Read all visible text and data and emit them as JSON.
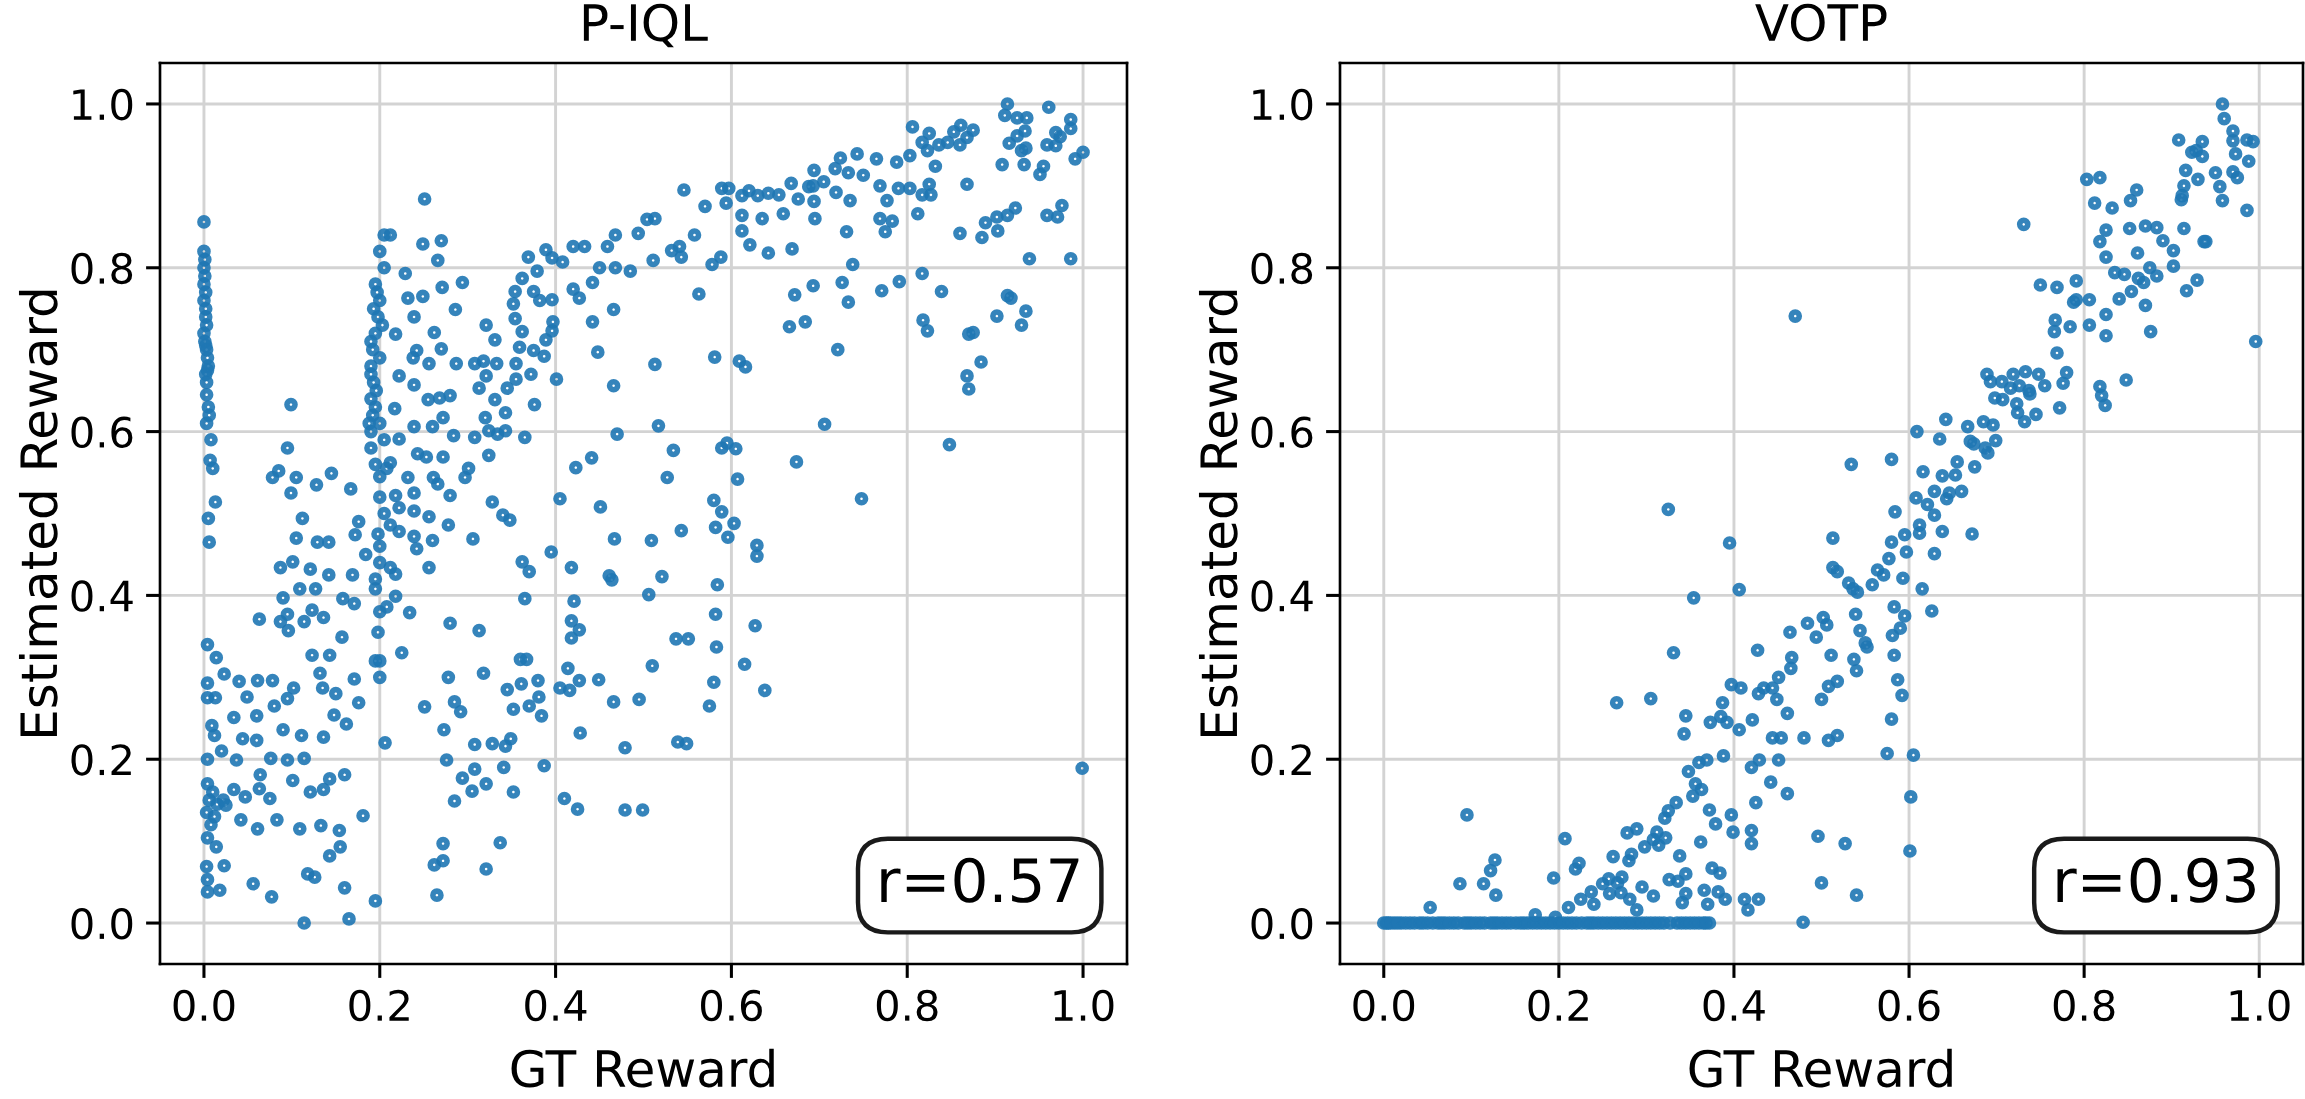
{
  "chart_data": [
    {
      "type": "scatter",
      "title": "P-IQL",
      "xlabel": "GT Reward",
      "ylabel": "Estimated Reward",
      "color": "#1f77b4",
      "marker": "circle",
      "grid": true,
      "xlim": [
        -0.05,
        1.05
      ],
      "ylim": [
        -0.05,
        1.05
      ],
      "xticks": [
        {
          "value": 0,
          "label": "0.0"
        },
        {
          "value": 0.2,
          "label": "0.2"
        },
        {
          "value": 0.4,
          "label": "0.4"
        },
        {
          "value": 0.6,
          "label": "0.6"
        },
        {
          "value": 0.8,
          "label": "0.8"
        },
        {
          "value": 1,
          "label": "1.0"
        }
      ],
      "yticks": [
        {
          "value": 0,
          "label": "0.0"
        },
        {
          "value": 0.2,
          "label": "0.2"
        },
        {
          "value": 0.4,
          "label": "0.4"
        },
        {
          "value": 0.6,
          "label": "0.6"
        },
        {
          "value": 0.8,
          "label": "0.8"
        },
        {
          "value": 1,
          "label": "1.0"
        }
      ],
      "annotations": [
        "r=0.57"
      ],
      "x": [
        0,
        0,
        0,
        0,
        0,
        0.002,
        0,
        0.003,
        0.005,
        0.003,
        0.005,
        0.003,
        0.008,
        0.007,
        0.01,
        0.013,
        0.005,
        0.006,
        0.001,
        0.002,
        0.001,
        0.004,
        0.002,
        0.001,
        0.002,
        0.003,
        0.002,
        0.004,
        0.003,
        0.006,
        0.004,
        0.014,
        0.023,
        0.004,
        0.004,
        0.013,
        0.009,
        0.012,
        0.02,
        0.004,
        0.004,
        0.01,
        0.006,
        0.015,
        0.003,
        0.012,
        0.022,
        0.008,
        0.004,
        0.014,
        0.023,
        0.003,
        0.004,
        0.004,
        0.018,
        0.056,
        0.077,
        0.114,
        0.118,
        0.126,
        0.16,
        0.165,
        0.195,
        0.143,
        0.155,
        0.154,
        0.181,
        0.133,
        0.109,
        0.061,
        0.083,
        0.042,
        0.034,
        0.063,
        0.075,
        0.047,
        0.025,
        0.101,
        0.121,
        0.136,
        0.143,
        0.16,
        0.114,
        0.095,
        0.076,
        0.064,
        0.037,
        0.044,
        0.06,
        0.034,
        0.06,
        0.08,
        0.04,
        0.061,
        0.078,
        0.049,
        0.102,
        0.095,
        0.09,
        0.111,
        0.136,
        0.135,
        0.123,
        0.143,
        0.132,
        0.15,
        0.148,
        0.162,
        0.176,
        0.171,
        0.195,
        0.063,
        0.087,
        0.096,
        0.095,
        0.114,
        0.123,
        0.136,
        0.09,
        0.109,
        0.127,
        0.142,
        0.158,
        0.157,
        0.171,
        0.169,
        0.184,
        0.195,
        0.087,
        0.101,
        0.121,
        0.105,
        0.112,
        0.129,
        0.142,
        0.172,
        0.176,
        0.099,
        0.078,
        0.095,
        0.085,
        0.105,
        0.128,
        0.145,
        0.167,
        0.099,
        0.205,
        0.212,
        0.2,
        0.205,
        0.195,
        0.2,
        0.198,
        0.195,
        0.192,
        0.19,
        0.193,
        0.19,
        0.192,
        0.19,
        0.19,
        0.195,
        0.2,
        0.2,
        0.205,
        0.198,
        0.2,
        0.2,
        0.195,
        0.2,
        0.198,
        0.2,
        0.2,
        0.197,
        0.203,
        0.2,
        0.196,
        0.2,
        0.205,
        0.19,
        0.193,
        0.195,
        0.19,
        0.188,
        0.251,
        0.249,
        0.27,
        0.266,
        0.229,
        0.271,
        0.294,
        0.249,
        0.232,
        0.262,
        0.239,
        0.286,
        0.218,
        0.242,
        0.27,
        0.287,
        0.256,
        0.238,
        0.222,
        0.239,
        0.255,
        0.268,
        0.28,
        0.308,
        0.318,
        0.313,
        0.217,
        0.239,
        0.26,
        0.272,
        0.284,
        0.308,
        0.222,
        0.243,
        0.253,
        0.272,
        0.212,
        0.232,
        0.218,
        0.208,
        0.239,
        0.261,
        0.266,
        0.28,
        0.297,
        0.301,
        0.222,
        0.239,
        0.212,
        0.222,
        0.239,
        0.242,
        0.26,
        0.256,
        0.278,
        0.306,
        0.212,
        0.218,
        0.256,
        0.218,
        0.234,
        0.208,
        0.225,
        0.206,
        0.251,
        0.28,
        0.278,
        0.285,
        0.292,
        0.273,
        0.276,
        0.285,
        0.294,
        0.305,
        0.308,
        0.272,
        0.262,
        0.272,
        0.265,
        0.313,
        0.318,
        0.308,
        0.321,
        0.321,
        0.321,
        0.32,
        0.328,
        0.331,
        0.333,
        0.321,
        0.331,
        0.345,
        0.343,
        0.324,
        0.334,
        0.343,
        0.324,
        0.365,
        0.355,
        0.355,
        0.372,
        0.359,
        0.362,
        0.354,
        0.352,
        0.354,
        0.362,
        0.369,
        0.375,
        0.382,
        0.375,
        0.379,
        0.389,
        0.396,
        0.396,
        0.389,
        0.396,
        0.397,
        0.387,
        0.401,
        0.376,
        0.408,
        0.42,
        0.433,
        0.42,
        0.427,
        0.442,
        0.442,
        0.45,
        0.459,
        0.468,
        0.468,
        0.466,
        0.448,
        0.466,
        0.485,
        0.494,
        0.504,
        0.513,
        0.511,
        0.513,
        0.532,
        0.541,
        0.543,
        0.546,
        0.558,
        0.563,
        0.57,
        0.578,
        0.588,
        0.581,
        0.589,
        0.597,
        0.594,
        0.609,
        0.616,
        0.612,
        0.612,
        0.612,
        0.621,
        0.62,
        0.63,
        0.642,
        0.635,
        0.642,
        0.654,
        0.659,
        0.668,
        0.676,
        0.669,
        0.672,
        0.666,
        0.684,
        0.674,
        0.688,
        0.517,
        0.47,
        0.534,
        0.441,
        0.423,
        0.527,
        0.405,
        0.451,
        0.589,
        0.595,
        0.605,
        0.607,
        0.58,
        0.589,
        0.582,
        0.603,
        0.596,
        0.629,
        0.629,
        0.543,
        0.509,
        0.467,
        0.34,
        0.348,
        0.395,
        0.362,
        0.37,
        0.418,
        0.461,
        0.464,
        0.521,
        0.506,
        0.584,
        0.365,
        0.421,
        0.418,
        0.427,
        0.418,
        0.582,
        0.627,
        0.537,
        0.551,
        0.583,
        0.36,
        0.367,
        0.414,
        0.51,
        0.615,
        0.345,
        0.361,
        0.38,
        0.427,
        0.449,
        0.405,
        0.416,
        0.58,
        0.638,
        0.352,
        0.37,
        0.381,
        0.384,
        0.466,
        0.495,
        0.575,
        0.328,
        0.343,
        0.349,
        0.428,
        0.479,
        0.539,
        0.549,
        0.341,
        0.352,
        0.387,
        0.41,
        0.425,
        0.479,
        0.499,
        0.337,
        0.694,
        0.693,
        0.705,
        0.694,
        0.695,
        0.718,
        0.724,
        0.719,
        0.733,
        0.735,
        0.743,
        0.75,
        0.765,
        0.769,
        0.777,
        0.788,
        0.79,
        0.769,
        0.775,
        0.783,
        0.731,
        0.803,
        0.806,
        0.817,
        0.825,
        0.823,
        0.803,
        0.812,
        0.817,
        0.825,
        0.827,
        0.832,
        0.836,
        0.846,
        0.853,
        0.861,
        0.868,
        0.875,
        0.86,
        0.868,
        0.86,
        0.885,
        0.889,
        0.902,
        0.914,
        0.923,
        0.903,
        0.908,
        0.914,
        0.911,
        0.925,
        0.936,
        0.916,
        0.925,
        0.934,
        0.93,
        0.935,
        0.933,
        0.951,
        0.955,
        0.959,
        0.961,
        0.969,
        0.974,
        0.969,
        0.959,
        0.971,
        0.976,
        0.986,
        0.986,
        0.991,
        1.0,
        0.939,
        0.986,
        0.693,
        0.726,
        0.733,
        0.738,
        0.771,
        0.791,
        0.721,
        0.817,
        0.839,
        0.818,
        0.823,
        0.87,
        0.875,
        0.868,
        0.87,
        0.884,
        0.902,
        0.914,
        0.918,
        0.935,
        0.93,
        0.706,
        0.848,
        0.748,
        0.999
      ],
      "values": [
        0.856,
        0.82,
        0.8,
        0.78,
        0.76,
        0.74,
        0.72,
        0.7,
        0.68,
        0.66,
        0.63,
        0.61,
        0.59,
        0.565,
        0.555,
        0.514,
        0.494,
        0.465,
        0.79,
        0.75,
        0.71,
        0.69,
        0.67,
        0.81,
        0.77,
        0.73,
        0.705,
        0.675,
        0.645,
        0.62,
        0.34,
        0.324,
        0.304,
        0.293,
        0.275,
        0.275,
        0.241,
        0.229,
        0.21,
        0.2,
        0.17,
        0.16,
        0.15,
        0.145,
        0.135,
        0.13,
        0.15,
        0.12,
        0.104,
        0.093,
        0.07,
        0.069,
        0.053,
        0.038,
        0.04,
        0.048,
        0.032,
        0.0,
        0.06,
        0.056,
        0.043,
        0.005,
        0.027,
        0.082,
        0.093,
        0.113,
        0.131,
        0.119,
        0.115,
        0.115,
        0.126,
        0.126,
        0.163,
        0.164,
        0.152,
        0.154,
        0.144,
        0.174,
        0.16,
        0.163,
        0.176,
        0.181,
        0.201,
        0.199,
        0.201,
        0.181,
        0.199,
        0.225,
        0.223,
        0.251,
        0.253,
        0.265,
        0.295,
        0.296,
        0.296,
        0.276,
        0.287,
        0.274,
        0.236,
        0.229,
        0.227,
        0.287,
        0.327,
        0.327,
        0.305,
        0.28,
        0.254,
        0.243,
        0.269,
        0.298,
        0.32,
        0.371,
        0.368,
        0.357,
        0.377,
        0.368,
        0.382,
        0.373,
        0.397,
        0.408,
        0.408,
        0.425,
        0.396,
        0.349,
        0.39,
        0.425,
        0.45,
        0.408,
        0.434,
        0.441,
        0.432,
        0.47,
        0.494,
        0.465,
        0.465,
        0.474,
        0.49,
        0.525,
        0.544,
        0.58,
        0.552,
        0.544,
        0.535,
        0.549,
        0.53,
        0.633,
        0.84,
        0.84,
        0.82,
        0.8,
        0.78,
        0.76,
        0.74,
        0.72,
        0.7,
        0.68,
        0.66,
        0.64,
        0.62,
        0.6,
        0.58,
        0.56,
        0.545,
        0.52,
        0.5,
        0.475,
        0.46,
        0.44,
        0.42,
        0.38,
        0.355,
        0.32,
        0.3,
        0.77,
        0.73,
        0.69,
        0.65,
        0.61,
        0.59,
        0.71,
        0.75,
        0.63,
        0.67,
        0.61,
        0.884,
        0.829,
        0.833,
        0.809,
        0.793,
        0.776,
        0.782,
        0.765,
        0.763,
        0.721,
        0.74,
        0.749,
        0.719,
        0.699,
        0.701,
        0.683,
        0.683,
        0.69,
        0.668,
        0.657,
        0.639,
        0.641,
        0.644,
        0.683,
        0.686,
        0.653,
        0.628,
        0.606,
        0.606,
        0.617,
        0.595,
        0.593,
        0.591,
        0.573,
        0.569,
        0.569,
        0.562,
        0.544,
        0.522,
        0.555,
        0.525,
        0.544,
        0.536,
        0.522,
        0.544,
        0.555,
        0.507,
        0.503,
        0.486,
        0.478,
        0.472,
        0.457,
        0.467,
        0.496,
        0.486,
        0.469,
        0.434,
        0.426,
        0.434,
        0.399,
        0.379,
        0.386,
        0.33,
        0.22,
        0.264,
        0.366,
        0.3,
        0.27,
        0.258,
        0.236,
        0.199,
        0.149,
        0.177,
        0.161,
        0.188,
        0.097,
        0.071,
        0.076,
        0.034,
        0.357,
        0.305,
        0.218,
        0.066,
        0.17,
        0.73,
        0.617,
        0.514,
        0.712,
        0.683,
        0.668,
        0.639,
        0.653,
        0.623,
        0.601,
        0.597,
        0.601,
        0.571,
        0.593,
        0.683,
        0.664,
        0.67,
        0.703,
        0.722,
        0.738,
        0.756,
        0.771,
        0.787,
        0.813,
        0.771,
        0.76,
        0.699,
        0.796,
        0.822,
        0.812,
        0.761,
        0.712,
        0.723,
        0.734,
        0.692,
        0.664,
        0.633,
        0.807,
        0.826,
        0.826,
        0.774,
        0.763,
        0.782,
        0.734,
        0.8,
        0.826,
        0.84,
        0.8,
        0.749,
        0.697,
        0.656,
        0.796,
        0.842,
        0.859,
        0.86,
        0.809,
        0.682,
        0.821,
        0.826,
        0.813,
        0.895,
        0.84,
        0.768,
        0.875,
        0.804,
        0.813,
        0.691,
        0.897,
        0.897,
        0.879,
        0.686,
        0.679,
        0.888,
        0.864,
        0.845,
        0.828,
        0.894,
        0.888,
        0.891,
        0.86,
        0.818,
        0.889,
        0.866,
        0.903,
        0.884,
        0.823,
        0.767,
        0.728,
        0.734,
        0.563,
        0.899,
        0.607,
        0.597,
        0.577,
        0.568,
        0.556,
        0.544,
        0.518,
        0.508,
        0.58,
        0.586,
        0.579,
        0.542,
        0.516,
        0.502,
        0.483,
        0.488,
        0.471,
        0.461,
        0.448,
        0.479,
        0.467,
        0.469,
        0.498,
        0.492,
        0.453,
        0.441,
        0.429,
        0.434,
        0.424,
        0.419,
        0.423,
        0.401,
        0.413,
        0.396,
        0.393,
        0.369,
        0.358,
        0.348,
        0.377,
        0.363,
        0.347,
        0.347,
        0.337,
        0.322,
        0.322,
        0.311,
        0.314,
        0.316,
        0.285,
        0.292,
        0.296,
        0.296,
        0.297,
        0.287,
        0.284,
        0.294,
        0.284,
        0.261,
        0.265,
        0.276,
        0.253,
        0.27,
        0.273,
        0.265,
        0.219,
        0.216,
        0.225,
        0.232,
        0.214,
        0.221,
        0.219,
        0.19,
        0.16,
        0.192,
        0.152,
        0.139,
        0.138,
        0.138,
        0.098,
        0.919,
        0.9,
        0.905,
        0.881,
        0.86,
        0.921,
        0.934,
        0.892,
        0.916,
        0.882,
        0.939,
        0.913,
        0.933,
        0.9,
        0.882,
        0.929,
        0.897,
        0.86,
        0.844,
        0.857,
        0.844,
        0.937,
        0.972,
        0.953,
        0.964,
        0.943,
        0.897,
        0.866,
        0.889,
        0.902,
        0.889,
        0.924,
        0.95,
        0.953,
        0.966,
        0.974,
        0.959,
        0.968,
        0.95,
        0.902,
        0.842,
        0.837,
        0.855,
        0.862,
        0.864,
        0.873,
        0.845,
        0.926,
        1.0,
        0.986,
        0.983,
        0.983,
        0.952,
        0.961,
        0.967,
        0.943,
        0.946,
        0.926,
        0.914,
        0.924,
        0.95,
        0.996,
        0.965,
        0.96,
        0.949,
        0.864,
        0.862,
        0.876,
        0.981,
        0.97,
        0.933,
        0.941,
        0.811,
        0.811,
        0.778,
        0.782,
        0.758,
        0.804,
        0.772,
        0.783,
        0.7,
        0.793,
        0.771,
        0.736,
        0.723,
        0.719,
        0.721,
        0.668,
        0.652,
        0.685,
        0.741,
        0.766,
        0.763,
        0.747,
        0.73,
        0.609,
        0.584,
        0.518,
        0.189
      ]
    },
    {
      "type": "scatter",
      "title": "VOTP",
      "xlabel": "GT Reward",
      "ylabel": "Estimated Reward",
      "color": "#1f77b4",
      "marker": "circle",
      "grid": true,
      "xlim": [
        -0.05,
        1.05
      ],
      "ylim": [
        -0.05,
        1.05
      ],
      "xticks": [
        {
          "value": 0,
          "label": "0.0"
        },
        {
          "value": 0.2,
          "label": "0.2"
        },
        {
          "value": 0.4,
          "label": "0.4"
        },
        {
          "value": 0.6,
          "label": "0.6"
        },
        {
          "value": 0.8,
          "label": "0.8"
        },
        {
          "value": 1,
          "label": "1.0"
        }
      ],
      "yticks": [
        {
          "value": 0,
          "label": "0.0"
        },
        {
          "value": 0.2,
          "label": "0.2"
        },
        {
          "value": 0.4,
          "label": "0.4"
        },
        {
          "value": 0.6,
          "label": "0.6"
        },
        {
          "value": 0.8,
          "label": "0.8"
        },
        {
          "value": 1,
          "label": "1.0"
        }
      ],
      "annotations": [
        "r=0.93"
      ],
      "x": [
        0.0,
        0.005,
        0.012,
        0.02,
        0.03,
        0.041,
        0.05,
        0.062,
        0.07,
        0.08,
        0.092,
        0.1,
        0.11,
        0.122,
        0.13,
        0.14,
        0.151,
        0.16,
        0.17,
        0.18,
        0.19,
        0.2,
        0.21,
        0.22,
        0.232,
        0.24,
        0.25,
        0.26,
        0.27,
        0.28,
        0.29,
        0.3,
        0.31,
        0.32,
        0.335,
        0.345,
        0.355,
        0.365,
        0.372,
        0.196,
        0.003,
        0.008,
        0.016,
        0.025,
        0.035,
        0.045,
        0.056,
        0.066,
        0.075,
        0.085,
        0.096,
        0.105,
        0.115,
        0.126,
        0.135,
        0.145,
        0.156,
        0.165,
        0.175,
        0.185,
        0.195,
        0.205,
        0.215,
        0.226,
        0.236,
        0.245,
        0.255,
        0.265,
        0.275,
        0.285,
        0.295,
        0.305,
        0.315,
        0.327,
        0.34,
        0.35,
        0.36,
        0.368,
        0.053,
        0.095,
        0.087,
        0.114,
        0.122,
        0.127,
        0.128,
        0.173,
        0.194,
        0.207,
        0.211,
        0.219,
        0.223,
        0.225,
        0.237,
        0.24,
        0.25,
        0.257,
        0.258,
        0.262,
        0.266,
        0.267,
        0.272,
        0.271,
        0.278,
        0.28,
        0.283,
        0.281,
        0.289,
        0.289,
        0.295,
        0.298,
        0.305,
        0.308,
        0.308,
        0.312,
        0.314,
        0.321,
        0.322,
        0.325,
        0.325,
        0.326,
        0.331,
        0.334,
        0.336,
        0.338,
        0.341,
        0.343,
        0.345,
        0.345,
        0.345,
        0.348,
        0.353,
        0.354,
        0.356,
        0.36,
        0.362,
        0.363,
        0.366,
        0.369,
        0.37,
        0.372,
        0.373,
        0.375,
        0.379,
        0.382,
        0.384,
        0.385,
        0.387,
        0.388,
        0.39,
        0.392,
        0.395,
        0.397,
        0.397,
        0.399,
        0.406,
        0.408,
        0.406,
        0.412,
        0.416,
        0.42,
        0.421,
        0.42,
        0.42,
        0.425,
        0.427,
        0.428,
        0.428,
        0.429,
        0.434,
        0.442,
        0.444,
        0.451,
        0.449,
        0.451,
        0.444,
        0.454,
        0.461,
        0.461,
        0.464,
        0.466,
        0.47,
        0.479,
        0.5,
        0.496,
        0.527,
        0.54,
        0.48,
        0.508,
        0.518,
        0.5,
        0.518,
        0.508,
        0.54,
        0.537,
        0.511,
        0.465,
        0.484,
        0.494,
        0.502,
        0.506,
        0.539,
        0.544,
        0.55,
        0.552,
        0.513,
        0.518,
        0.513,
        0.531,
        0.536,
        0.541,
        0.534,
        0.558,
        0.564,
        0.571,
        0.577,
        0.583,
        0.581,
        0.583,
        0.587,
        0.592,
        0.58,
        0.575,
        0.605,
        0.602,
        0.601,
        0.59,
        0.595,
        0.58,
        0.584,
        0.58,
        0.593,
        0.595,
        0.597,
        0.609,
        0.612,
        0.612,
        0.615,
        0.608,
        0.616,
        0.621,
        0.626,
        0.629,
        0.629,
        0.629,
        0.635,
        0.638,
        0.638,
        0.642,
        0.643,
        0.646,
        0.653,
        0.655,
        0.66,
        0.667,
        0.67,
        0.672,
        0.675,
        0.674,
        0.685,
        0.687,
        0.689,
        0.69,
        0.693,
        0.696,
        0.699,
        0.698,
        0.706,
        0.707,
        0.716,
        0.719,
        0.723,
        0.724,
        0.726,
        0.732,
        0.733,
        0.737,
        0.738,
        0.731,
        0.745,
        0.748,
        0.755,
        0.75,
        0.769,
        0.767,
        0.766,
        0.769,
        0.772,
        0.776,
        0.78,
        0.784,
        0.788,
        0.791,
        0.791,
        0.806,
        0.806,
        0.803,
        0.818,
        0.812,
        0.818,
        0.82,
        0.824,
        0.818,
        0.825,
        0.825,
        0.825,
        0.825,
        0.832,
        0.835,
        0.84,
        0.848,
        0.846,
        0.853,
        0.86,
        0.852,
        0.854,
        0.861,
        0.862,
        0.868,
        0.87,
        0.87,
        0.876,
        0.875,
        0.883,
        0.883,
        0.89,
        0.902,
        0.902,
        0.908,
        0.911,
        0.912,
        0.914,
        0.914,
        0.917,
        0.916,
        0.923,
        0.928,
        0.93,
        0.929,
        0.935,
        0.935,
        0.937,
        0.939,
        0.95,
        0.955,
        0.958,
        0.96,
        0.958,
        0.97,
        0.97,
        0.973,
        0.97,
        0.975,
        0.986,
        0.988,
        0.986,
        0.993,
        0.996
      ],
      "values": [
        0,
        0,
        0,
        0,
        0,
        0,
        0,
        0,
        0,
        0,
        0,
        0,
        0,
        0,
        0,
        0,
        0,
        0,
        0,
        0,
        0,
        0,
        0,
        0,
        0,
        0,
        0,
        0,
        0,
        0,
        0,
        0,
        0,
        0,
        0,
        0,
        0,
        0,
        0,
        0.007,
        0,
        0,
        0,
        0,
        0,
        0,
        0,
        0,
        0,
        0,
        0,
        0,
        0,
        0,
        0,
        0,
        0,
        0,
        0,
        0,
        0,
        0,
        0,
        0,
        0,
        0,
        0,
        0,
        0,
        0,
        0,
        0,
        0,
        0,
        0,
        0,
        0,
        0,
        0.019,
        0.132,
        0.048,
        0.048,
        0.064,
        0.077,
        0.034,
        0.01,
        0.055,
        0.103,
        0.019,
        0.066,
        0.073,
        0.029,
        0.038,
        0.023,
        0.048,
        0.054,
        0.036,
        0.081,
        0.269,
        0.049,
        0.056,
        0.037,
        0.11,
        0.076,
        0.084,
        0.029,
        0.115,
        0.016,
        0.044,
        0.093,
        0.274,
        0.033,
        0.102,
        0.111,
        0.095,
        0.128,
        0.104,
        0.505,
        0.137,
        0.053,
        0.33,
        0.147,
        0.051,
        0.082,
        0.025,
        0.231,
        0.253,
        0.06,
        0.036,
        0.185,
        0.155,
        0.397,
        0.17,
        0.196,
        0.099,
        0.163,
        0.04,
        0.199,
        0.023,
        0.138,
        0.245,
        0.067,
        0.121,
        0.038,
        0.061,
        0.252,
        0.269,
        0.204,
        0.029,
        0.245,
        0.464,
        0.291,
        0.132,
        0.111,
        0.407,
        0.287,
        0.236,
        0.029,
        0.016,
        0.19,
        0.248,
        0.113,
        0.097,
        0.147,
        0.333,
        0.28,
        0.029,
        0.199,
        0.287,
        0.172,
        0.287,
        0.3,
        0.273,
        0.199,
        0.226,
        0.226,
        0.158,
        0.256,
        0.355,
        0.324,
        0.741,
        0.001,
        0.049,
        0.106,
        0.097,
        0.034,
        0.226,
        0.223,
        0.229,
        0.273,
        0.295,
        0.289,
        0.308,
        0.322,
        0.327,
        0.311,
        0.366,
        0.349,
        0.373,
        0.364,
        0.377,
        0.357,
        0.342,
        0.337,
        0.434,
        0.429,
        0.47,
        0.415,
        0.408,
        0.404,
        0.56,
        0.413,
        0.431,
        0.425,
        0.445,
        0.386,
        0.351,
        0.327,
        0.297,
        0.278,
        0.249,
        0.207,
        0.205,
        0.154,
        0.088,
        0.36,
        0.375,
        0.465,
        0.502,
        0.566,
        0.421,
        0.474,
        0.453,
        0.6,
        0.486,
        0.476,
        0.408,
        0.519,
        0.551,
        0.511,
        0.381,
        0.498,
        0.527,
        0.451,
        0.591,
        0.546,
        0.478,
        0.615,
        0.518,
        0.525,
        0.547,
        0.563,
        0.527,
        0.606,
        0.588,
        0.475,
        0.557,
        0.585,
        0.612,
        0.58,
        0.67,
        0.574,
        0.661,
        0.608,
        0.589,
        0.641,
        0.661,
        0.639,
        0.653,
        0.67,
        0.634,
        0.623,
        0.656,
        0.612,
        0.673,
        0.65,
        0.646,
        0.853,
        0.621,
        0.67,
        0.656,
        0.779,
        0.776,
        0.736,
        0.722,
        0.696,
        0.629,
        0.659,
        0.672,
        0.728,
        0.758,
        0.784,
        0.761,
        0.761,
        0.73,
        0.908,
        0.91,
        0.879,
        0.655,
        0.644,
        0.632,
        0.832,
        0.846,
        0.813,
        0.743,
        0.717,
        0.873,
        0.794,
        0.762,
        0.663,
        0.792,
        0.882,
        0.895,
        0.848,
        0.771,
        0.818,
        0.787,
        0.782,
        0.851,
        0.754,
        0.722,
        0.8,
        0.849,
        0.79,
        0.833,
        0.821,
        0.802,
        0.956,
        0.883,
        0.888,
        0.9,
        0.848,
        0.772,
        0.919,
        0.941,
        0.943,
        0.908,
        0.785,
        0.954,
        0.936,
        0.832,
        0.832,
        0.916,
        0.899,
        1.0,
        0.982,
        0.882,
        0.967,
        0.955,
        0.939,
        0.917,
        0.91,
        0.956,
        0.93,
        0.87,
        0.954,
        0.71
      ]
    }
  ]
}
